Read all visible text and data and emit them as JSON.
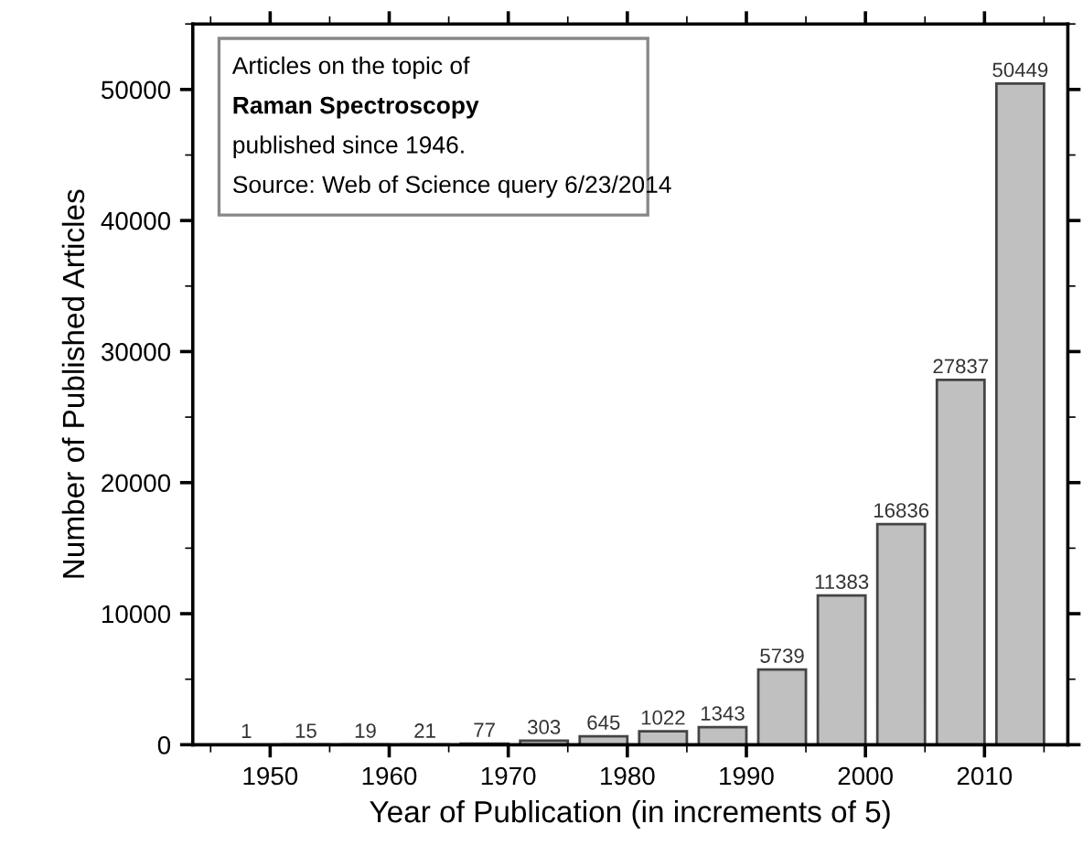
{
  "chart_data": {
    "type": "bar",
    "xlabel": "Year of Publication (in increments of 5)",
    "ylabel": "Number of Published Articles",
    "x": [
      1948,
      1953,
      1958,
      1963,
      1968,
      1973,
      1978,
      1983,
      1988,
      1993,
      1998,
      2003,
      2008,
      2013
    ],
    "values": [
      1,
      15,
      19,
      21,
      77,
      303,
      645,
      1022,
      1343,
      5739,
      11383,
      16836,
      27837,
      50449
    ],
    "color": "#c0c0c0",
    "data_labels": true,
    "xlim": [
      1943.5,
      2017
    ],
    "xticks": [
      1950,
      1960,
      1970,
      1980,
      1990,
      2000,
      2010
    ],
    "ylim": [
      0,
      55000
    ],
    "yticks": [
      0,
      10000,
      20000,
      30000,
      40000,
      50000
    ],
    "grid": false,
    "legend": false,
    "annotations": [
      "Articles on the topic of",
      "Raman Spectroscopy",
      "published since 1946.",
      "Source: Web of Science query 6/23/2014"
    ]
  }
}
